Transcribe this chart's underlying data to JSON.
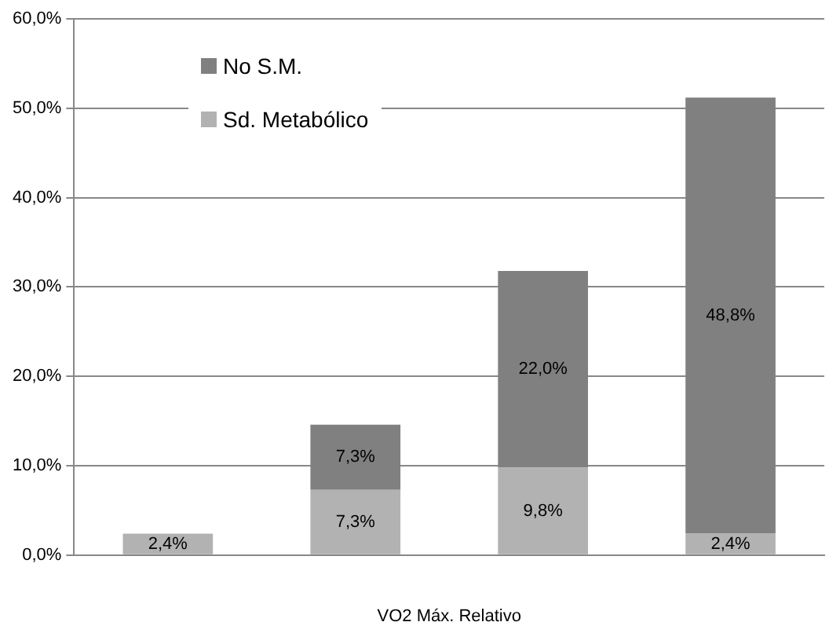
{
  "chart_data": {
    "type": "bar",
    "stacked": true,
    "xlabel": "VO2 Máx. Relativo",
    "categories": [
      null,
      null,
      null,
      null
    ],
    "series": [
      {
        "name": "Sd. Metabólico",
        "color": "#b2b2b2",
        "values": [
          2.4,
          7.3,
          9.8,
          2.4
        ],
        "value_labels": [
          "2,4%",
          "7,3%",
          "9,8%",
          "2,4%"
        ]
      },
      {
        "name": "No S.M.",
        "color": "#808080",
        "values": [
          null,
          7.3,
          22.0,
          48.8
        ],
        "value_labels": [
          null,
          "7,3%",
          "22,0%",
          "48,8%"
        ]
      }
    ],
    "ylim": [
      0,
      60
    ],
    "yticks": [
      {
        "value": 0,
        "label": "0,0%"
      },
      {
        "value": 10,
        "label": "10,0%"
      },
      {
        "value": 20,
        "label": "20,0%"
      },
      {
        "value": 30,
        "label": "30,0%"
      },
      {
        "value": 40,
        "label": "40,0%"
      },
      {
        "value": 50,
        "label": "50,0%"
      },
      {
        "value": 60,
        "label": "60,0%"
      }
    ],
    "grid": "y",
    "legend": "top left"
  }
}
